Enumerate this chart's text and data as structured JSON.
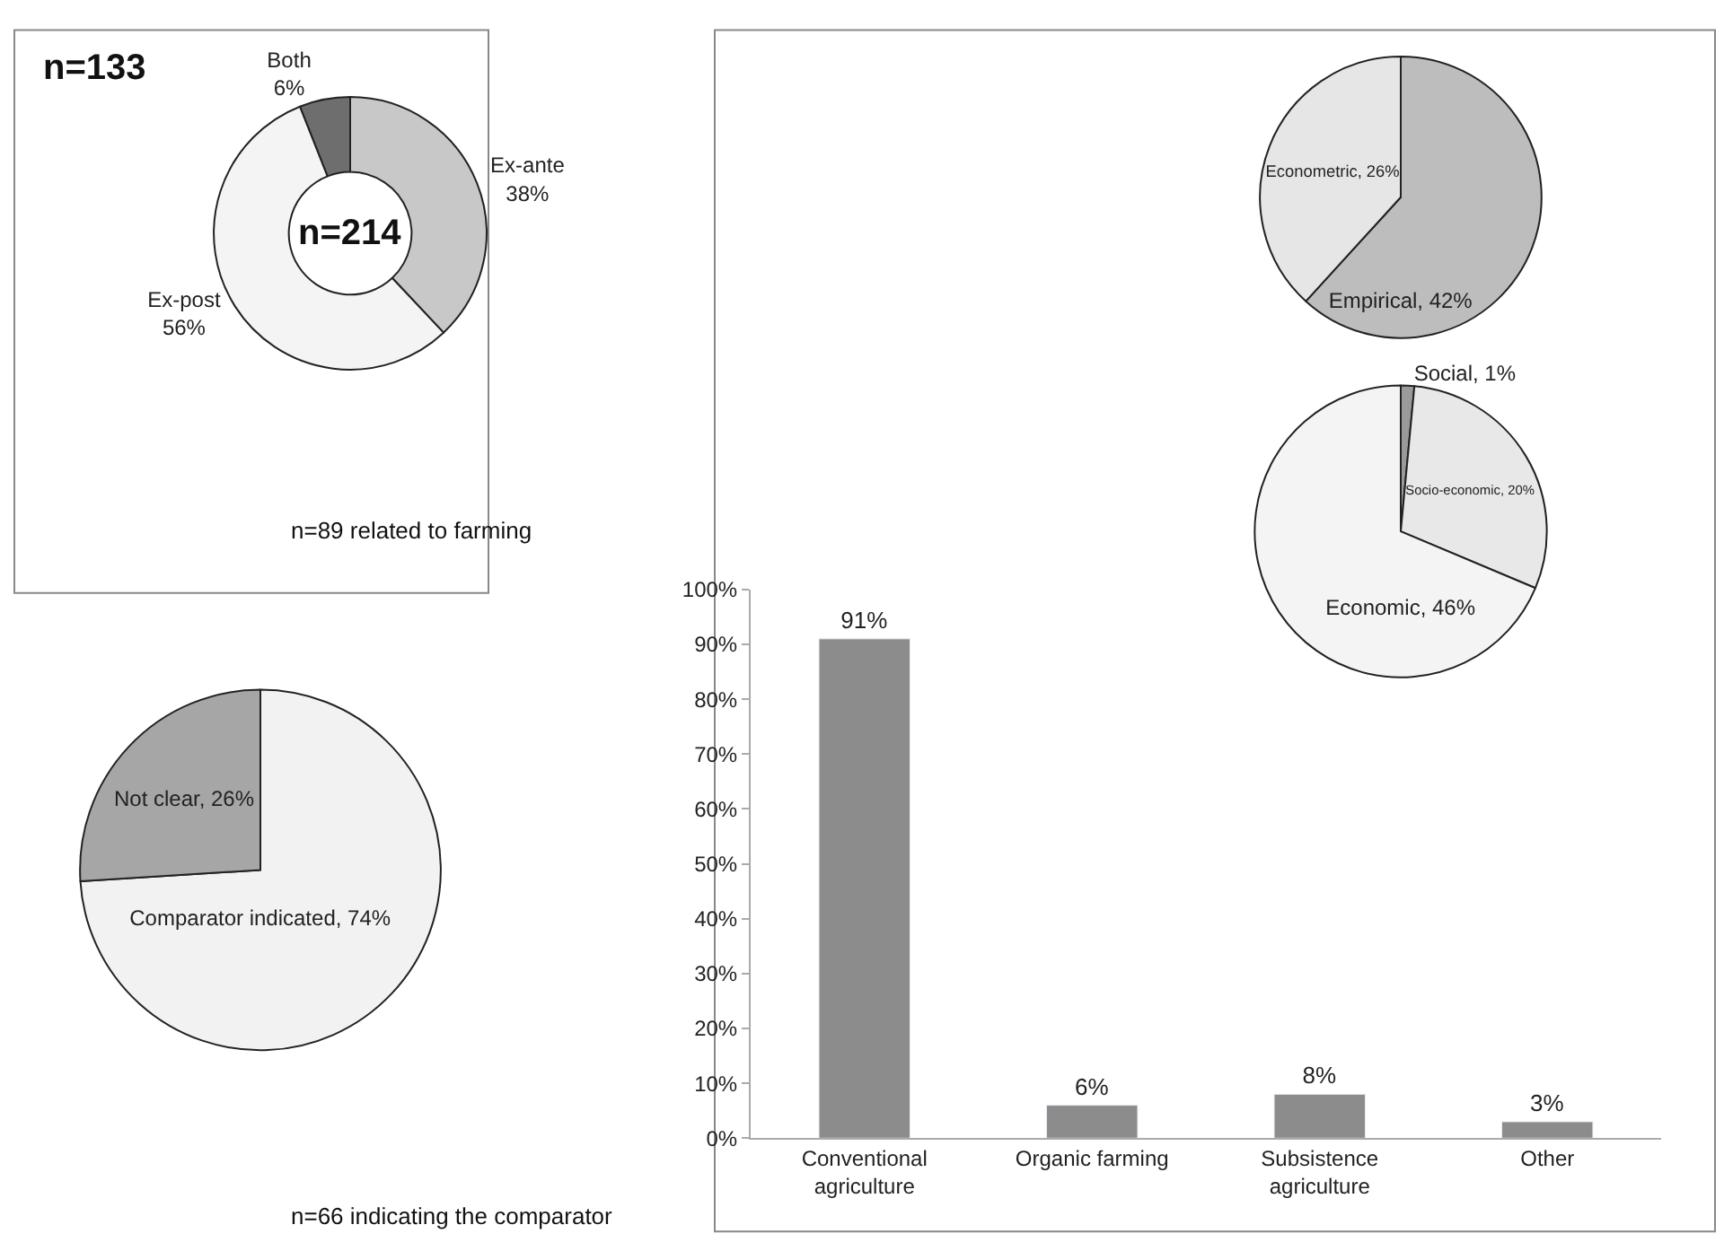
{
  "chart_data": [
    {
      "type": "donut",
      "categories": [
        "Ex-ante",
        "Ex-post",
        "Both"
      ],
      "values": [
        38,
        56,
        6
      ],
      "value_labels": [
        "38%",
        "56%",
        "6%"
      ],
      "colors": [
        "#c8c8c8",
        "#f4f4f4",
        "#6e6e6e"
      ],
      "annotations": [
        "n=133",
        "n=214"
      ]
    },
    {
      "type": "pie",
      "categories": [
        "Comparator indicated",
        "Not clear"
      ],
      "values": [
        74,
        26
      ],
      "value_labels": [
        "74%",
        "26%"
      ],
      "colors": [
        "#f2f2f2",
        "#a6a6a6"
      ],
      "annotations": [
        "n=89 related to farming"
      ]
    },
    {
      "type": "bar",
      "categories": [
        "Conventional agriculture",
        "Organic farming",
        "Subsistence agriculture",
        "Other"
      ],
      "values": [
        91,
        6,
        8,
        3
      ],
      "value_labels": [
        "91%",
        "6%",
        "8%",
        "3%"
      ],
      "color": "#8c8c8c",
      "ylim": [
        0,
        100
      ],
      "yticks": [
        {
          "value": 0,
          "label": "0%"
        },
        {
          "value": 10,
          "label": "10%"
        },
        {
          "value": 20,
          "label": "20%"
        },
        {
          "value": 30,
          "label": "30%"
        },
        {
          "value": 40,
          "label": "40%"
        },
        {
          "value": 50,
          "label": "50%"
        },
        {
          "value": 60,
          "label": "60%"
        },
        {
          "value": 70,
          "label": "70%"
        },
        {
          "value": 80,
          "label": "80%"
        },
        {
          "value": 90,
          "label": "90%"
        },
        {
          "value": 100,
          "label": "100%"
        }
      ],
      "annotations": [
        "n=66 indicating the comparator"
      ]
    },
    {
      "type": "pie",
      "categories": [
        "Empirical",
        "Econometric"
      ],
      "values": [
        42,
        26
      ],
      "value_labels": [
        "42%",
        "26%"
      ],
      "colors": [
        "#bdbdbd",
        "#e6e6e6"
      ]
    },
    {
      "type": "pie",
      "categories": [
        "Social",
        "Socio-economic",
        "Economic"
      ],
      "values": [
        1,
        20,
        46
      ],
      "value_labels": [
        "1%",
        "20%",
        "46%"
      ],
      "colors": [
        "#9a9a9a",
        "#e8e8e8",
        "#f4f4f4"
      ]
    }
  ]
}
